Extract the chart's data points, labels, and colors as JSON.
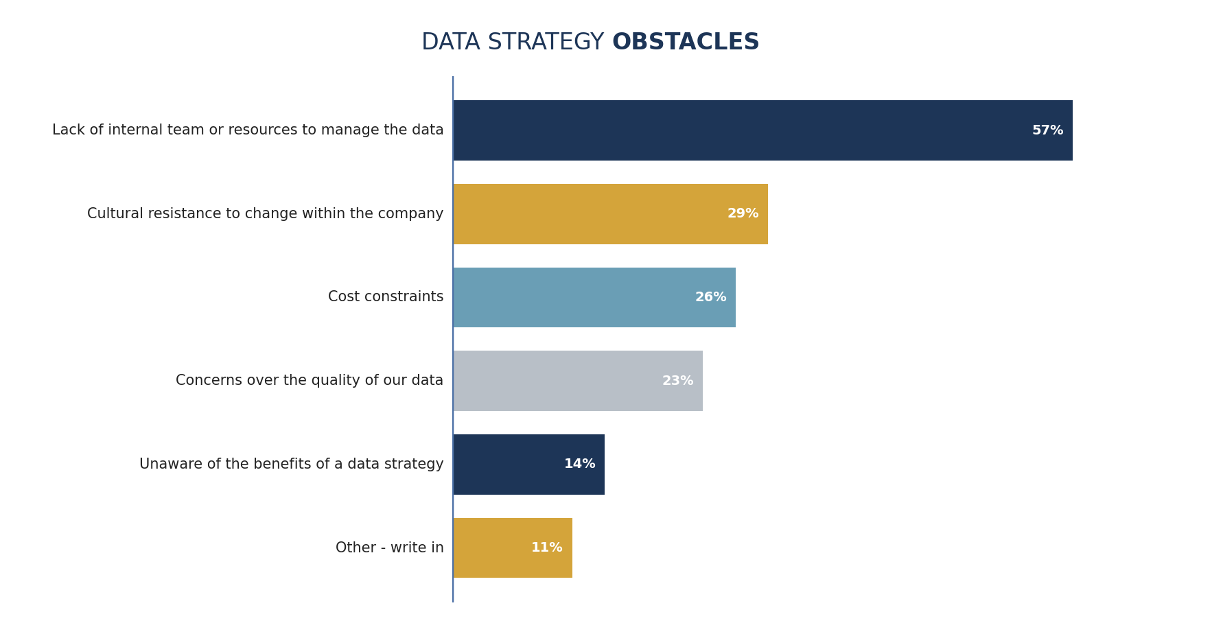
{
  "title_regular": "DATA STRATEGY ",
  "title_bold": "OBSTACLES",
  "title_color": "#1d3557",
  "title_fontsize": 24,
  "background_color": "#ffffff",
  "categories": [
    "Lack of internal team or resources to manage the data",
    "Cultural resistance to change within the company",
    "Cost constraints",
    "Concerns over the quality of our data",
    "Unaware of the benefits of a data strategy",
    "Other - write in"
  ],
  "values": [
    57,
    29,
    26,
    23,
    14,
    11
  ],
  "bar_colors": [
    "#1d3557",
    "#d4a43a",
    "#6a9eb5",
    "#b8bfc7",
    "#1d3557",
    "#d4a43a"
  ],
  "label_fontsize": 15,
  "value_fontsize": 14,
  "divider_color": "#4a6fa5",
  "bar_height": 0.72,
  "bar_spacing": 1.0,
  "xlim": [
    0,
    68
  ],
  "label_color": "#222222"
}
